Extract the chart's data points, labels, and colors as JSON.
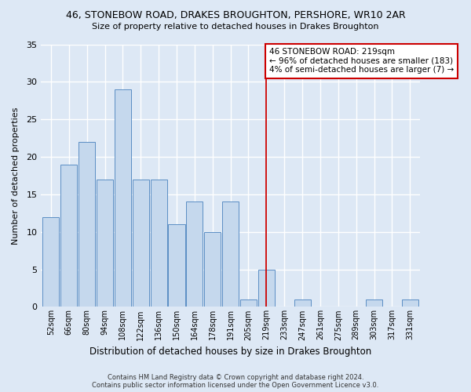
{
  "title": "46, STONEBOW ROAD, DRAKES BROUGHTON, PERSHORE, WR10 2AR",
  "subtitle": "Size of property relative to detached houses in Drakes Broughton",
  "xlabel": "Distribution of detached houses by size in Drakes Broughton",
  "ylabel": "Number of detached properties",
  "footer": "Contains HM Land Registry data © Crown copyright and database right 2024.\nContains public sector information licensed under the Open Government Licence v3.0.",
  "categories": [
    "52sqm",
    "66sqm",
    "80sqm",
    "94sqm",
    "108sqm",
    "122sqm",
    "136sqm",
    "150sqm",
    "164sqm",
    "178sqm",
    "191sqm",
    "205sqm",
    "219sqm",
    "233sqm",
    "247sqm",
    "261sqm",
    "275sqm",
    "289sqm",
    "303sqm",
    "317sqm",
    "331sqm"
  ],
  "values": [
    12,
    19,
    22,
    17,
    29,
    17,
    17,
    11,
    14,
    10,
    14,
    1,
    5,
    0,
    1,
    0,
    0,
    0,
    1,
    0,
    1
  ],
  "bar_color": "#c5d8ed",
  "bar_edge_color": "#5b8ec4",
  "background_color": "#dde8f5",
  "plot_bg_color": "#dde8f5",
  "grid_color": "#ffffff",
  "red_line_index": 12,
  "annotation_text": "46 STONEBOW ROAD: 219sqm\n← 96% of detached houses are smaller (183)\n4% of semi-detached houses are larger (7) →",
  "annotation_box_color": "#ffffff",
  "annotation_box_edge": "#cc0000",
  "ylim": [
    0,
    35
  ],
  "yticks": [
    0,
    5,
    10,
    15,
    20,
    25,
    30,
    35
  ]
}
